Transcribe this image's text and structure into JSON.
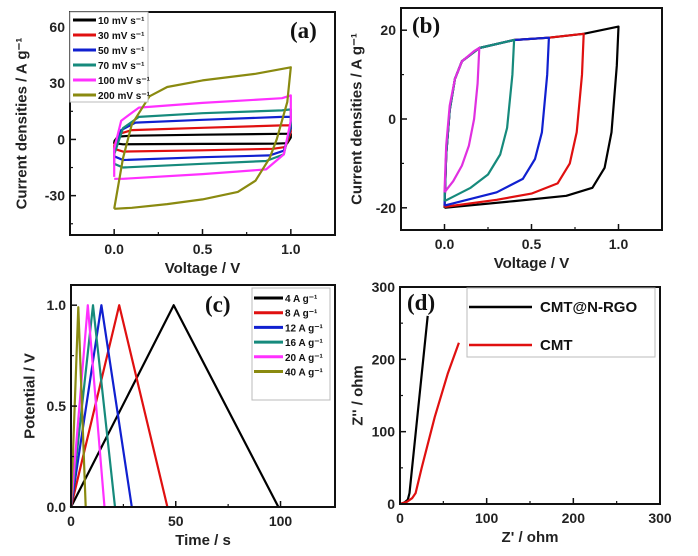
{
  "chart_data": [
    {
      "panel_label": "(a)",
      "type": "line",
      "xlabel": "Voltage / V",
      "ylabel": "Current densities / A g⁻¹",
      "xlim": [
        -0.25,
        1.25
      ],
      "ylim": [
        -51,
        68
      ],
      "xticks": [
        0.0,
        0.5,
        1.0
      ],
      "xtick_labels": [
        "0.0",
        "0.5",
        "1.0"
      ],
      "yticks": [
        -30,
        0,
        30,
        60
      ],
      "ytick_labels": [
        "-30",
        "0",
        "30",
        "60"
      ],
      "legend_position": "top-left",
      "series": [
        {
          "name": "10 mV s⁻¹",
          "color": "#000000",
          "points": [
            [
              0,
              -1
            ],
            [
              0.02,
              1.5
            ],
            [
              0.1,
              2
            ],
            [
              0.5,
              2.5
            ],
            [
              0.95,
              3
            ],
            [
              1.0,
              3
            ],
            [
              1.0,
              1
            ],
            [
              0.98,
              -2
            ],
            [
              0.9,
              -2.3
            ],
            [
              0.5,
              -2.4
            ],
            [
              0.05,
              -2.6
            ],
            [
              0,
              -2
            ],
            [
              0,
              -1
            ]
          ]
        },
        {
          "name": "30 mV s⁻¹",
          "color": "#e01010",
          "points": [
            [
              0,
              -3
            ],
            [
              0.03,
              3
            ],
            [
              0.1,
              5
            ],
            [
              0.5,
              6.2
            ],
            [
              0.95,
              7.5
            ],
            [
              1.0,
              7.5
            ],
            [
              1.0,
              4
            ],
            [
              0.97,
              -4
            ],
            [
              0.9,
              -5
            ],
            [
              0.5,
              -5.8
            ],
            [
              0.05,
              -6.5
            ],
            [
              0,
              -5
            ],
            [
              0,
              -3
            ]
          ]
        },
        {
          "name": "50 mV s⁻¹",
          "color": "#1020d0",
          "points": [
            [
              0,
              -6
            ],
            [
              0.04,
              5
            ],
            [
              0.12,
              9
            ],
            [
              0.5,
              10.5
            ],
            [
              0.95,
              12
            ],
            [
              1.0,
              12
            ],
            [
              1.0,
              6
            ],
            [
              0.96,
              -6
            ],
            [
              0.88,
              -8.5
            ],
            [
              0.5,
              -9.5
            ],
            [
              0.05,
              -11
            ],
            [
              0,
              -9
            ],
            [
              0,
              -6
            ]
          ]
        },
        {
          "name": "70 mV s⁻¹",
          "color": "#168a7c",
          "points": [
            [
              0,
              -8
            ],
            [
              0.05,
              6
            ],
            [
              0.14,
              12
            ],
            [
              0.5,
              14
            ],
            [
              0.95,
              15.5
            ],
            [
              1.0,
              16
            ],
            [
              1.0,
              8
            ],
            [
              0.96,
              -8
            ],
            [
              0.86,
              -11.5
            ],
            [
              0.5,
              -13
            ],
            [
              0.05,
              -15
            ],
            [
              0,
              -13
            ],
            [
              0,
              -8
            ]
          ]
        },
        {
          "name": "100 mV s⁻¹",
          "color": "#ff30ff",
          "points": [
            [
              0,
              -20
            ],
            [
              0,
              -5
            ],
            [
              0.04,
              10
            ],
            [
              0.14,
              17
            ],
            [
              0.5,
              19.5
            ],
            [
              0.95,
              22
            ],
            [
              1.0,
              23.5
            ],
            [
              1.0,
              10
            ],
            [
              0.96,
              -8
            ],
            [
              0.86,
              -16
            ],
            [
              0.5,
              -18.5
            ],
            [
              0.05,
              -21
            ],
            [
              0,
              -21
            ]
          ]
        },
        {
          "name": "200 mV s⁻¹",
          "color": "#8a8a10",
          "points": [
            [
              0,
              -37
            ],
            [
              0.05,
              -10
            ],
            [
              0.1,
              8
            ],
            [
              0.2,
              23
            ],
            [
              0.3,
              28
            ],
            [
              0.5,
              31.5
            ],
            [
              0.8,
              35
            ],
            [
              1.0,
              38.5
            ],
            [
              0.98,
              20
            ],
            [
              0.92,
              0
            ],
            [
              0.88,
              -10
            ],
            [
              0.8,
              -22
            ],
            [
              0.7,
              -28
            ],
            [
              0.5,
              -32
            ],
            [
              0.3,
              -34.5
            ],
            [
              0.1,
              -36.5
            ],
            [
              0,
              -37
            ]
          ]
        }
      ]
    },
    {
      "panel_label": "(b)",
      "type": "line",
      "xlabel": "Voltage / V",
      "ylabel": "Current densities / A g⁻¹",
      "xlim": [
        -0.25,
        1.25
      ],
      "ylim": [
        -25,
        25
      ],
      "xticks": [
        0.0,
        0.5,
        1.0
      ],
      "xtick_labels": [
        "0.0",
        "0.5",
        "1.0"
      ],
      "yticks": [
        -20,
        0,
        20
      ],
      "ytick_labels": [
        "-20",
        "0",
        "20"
      ],
      "series": [
        {
          "color": "#000000",
          "points": [
            [
              0,
              -20
            ],
            [
              0.01,
              -8
            ],
            [
              0.03,
              2
            ],
            [
              0.06,
              9
            ],
            [
              0.1,
              13
            ],
            [
              0.2,
              16
            ],
            [
              0.4,
              17.8
            ],
            [
              0.6,
              18.3
            ],
            [
              0.8,
              19.2
            ],
            [
              1.0,
              20.8
            ],
            [
              0.99,
              12
            ],
            [
              0.96,
              -3
            ],
            [
              0.92,
              -11
            ],
            [
              0.85,
              -15.5
            ],
            [
              0.7,
              -17.3
            ],
            [
              0.4,
              -18.5
            ],
            [
              0,
              -20
            ]
          ]
        },
        {
          "color": "#e01010",
          "points": [
            [
              0,
              -19.8
            ],
            [
              0.01,
              -8
            ],
            [
              0.03,
              2
            ],
            [
              0.06,
              9
            ],
            [
              0.1,
              13
            ],
            [
              0.2,
              16
            ],
            [
              0.4,
              17.8
            ],
            [
              0.6,
              18.3
            ],
            [
              0.8,
              19.2
            ],
            [
              0.79,
              10
            ],
            [
              0.76,
              -3
            ],
            [
              0.72,
              -10
            ],
            [
              0.65,
              -14.5
            ],
            [
              0.5,
              -16.8
            ],
            [
              0.3,
              -18.2
            ],
            [
              0,
              -19.8
            ]
          ]
        },
        {
          "color": "#1020d0",
          "points": [
            [
              0,
              -19.5
            ],
            [
              0.01,
              -8
            ],
            [
              0.03,
              2
            ],
            [
              0.06,
              9
            ],
            [
              0.1,
              13
            ],
            [
              0.2,
              16
            ],
            [
              0.4,
              17.8
            ],
            [
              0.6,
              18.3
            ],
            [
              0.59,
              10
            ],
            [
              0.56,
              -3
            ],
            [
              0.52,
              -9
            ],
            [
              0.45,
              -13.5
            ],
            [
              0.3,
              -16.5
            ],
            [
              0.15,
              -18
            ],
            [
              0,
              -19.5
            ]
          ]
        },
        {
          "color": "#168a7c",
          "points": [
            [
              0,
              -18.5
            ],
            [
              0.01,
              -8
            ],
            [
              0.03,
              2
            ],
            [
              0.06,
              9
            ],
            [
              0.1,
              13
            ],
            [
              0.2,
              16
            ],
            [
              0.4,
              17.8
            ],
            [
              0.39,
              10
            ],
            [
              0.36,
              -2
            ],
            [
              0.32,
              -8
            ],
            [
              0.25,
              -12.5
            ],
            [
              0.15,
              -15.5
            ],
            [
              0.05,
              -17.5
            ],
            [
              0,
              -18.5
            ]
          ]
        },
        {
          "color": "#e030e0",
          "points": [
            [
              0,
              -16.5
            ],
            [
              0.01,
              -6
            ],
            [
              0.03,
              3
            ],
            [
              0.06,
              9
            ],
            [
              0.1,
              13
            ],
            [
              0.17,
              15.3
            ],
            [
              0.2,
              16
            ],
            [
              0.19,
              8
            ],
            [
              0.17,
              0
            ],
            [
              0.14,
              -6
            ],
            [
              0.1,
              -10.5
            ],
            [
              0.05,
              -14
            ],
            [
              0,
              -16.5
            ]
          ]
        }
      ]
    },
    {
      "panel_label": "(c)",
      "type": "line",
      "xlabel": "Time / s",
      "ylabel": "Potential / V",
      "xlim": [
        0,
        126
      ],
      "ylim": [
        0,
        1.1
      ],
      "xticks": [
        0,
        50,
        100
      ],
      "xtick_labels": [
        "0",
        "50",
        "100"
      ],
      "yticks": [
        0.0,
        0.5,
        1.0
      ],
      "ytick_labels": [
        "0.0",
        "0.5",
        "1.0"
      ],
      "legend_position": "top-right",
      "series": [
        {
          "name": "4 A g⁻¹",
          "color": "#000000",
          "points": [
            [
              0,
              0
            ],
            [
              49,
              1.0
            ],
            [
              99,
              0
            ]
          ]
        },
        {
          "name": "8 A g⁻¹",
          "color": "#e01010",
          "points": [
            [
              0,
              0
            ],
            [
              23,
              1.0
            ],
            [
              46,
              0
            ]
          ]
        },
        {
          "name": "12 A g⁻¹",
          "color": "#1020d0",
          "points": [
            [
              0,
              0
            ],
            [
              14.5,
              1.0
            ],
            [
              29,
              0
            ]
          ]
        },
        {
          "name": "16 A g⁻¹",
          "color": "#168a7c",
          "points": [
            [
              0,
              0
            ],
            [
              10.5,
              1.0
            ],
            [
              21,
              0
            ]
          ]
        },
        {
          "name": "20 A g⁻¹",
          "color": "#ff30ff",
          "points": [
            [
              0,
              0
            ],
            [
              8,
              1.0
            ],
            [
              16,
              0
            ]
          ]
        },
        {
          "name": "40 A g⁻¹",
          "color": "#8a8a10",
          "points": [
            [
              0,
              0
            ],
            [
              3.5,
              0.99
            ],
            [
              7,
              0
            ]
          ]
        }
      ]
    },
    {
      "panel_label": "(d)",
      "type": "line",
      "xlabel": "Z' / ohm",
      "ylabel": "Z'' / ohm",
      "xlim": [
        0,
        300
      ],
      "ylim": [
        0,
        300
      ],
      "xticks": [
        0,
        100,
        200,
        300
      ],
      "xtick_labels": [
        "0",
        "100",
        "200",
        "300"
      ],
      "yticks": [
        0,
        100,
        200,
        300
      ],
      "ytick_labels": [
        "0",
        "100",
        "200",
        "300"
      ],
      "legend_position": "top-right",
      "series": [
        {
          "name": "CMT@N-RGO",
          "color": "#000000",
          "points": [
            [
              0,
              0
            ],
            [
              5,
              2
            ],
            [
              9,
              6
            ],
            [
              11,
              15
            ],
            [
              20,
              120
            ],
            [
              32,
              260
            ]
          ]
        },
        {
          "name": "CMT",
          "color": "#e01010",
          "points": [
            [
              0,
              0
            ],
            [
              8,
              3
            ],
            [
              14,
              8
            ],
            [
              18,
              15
            ],
            [
              25,
              50
            ],
            [
              40,
              120
            ],
            [
              55,
              180
            ],
            [
              68,
              223
            ]
          ]
        }
      ]
    }
  ]
}
